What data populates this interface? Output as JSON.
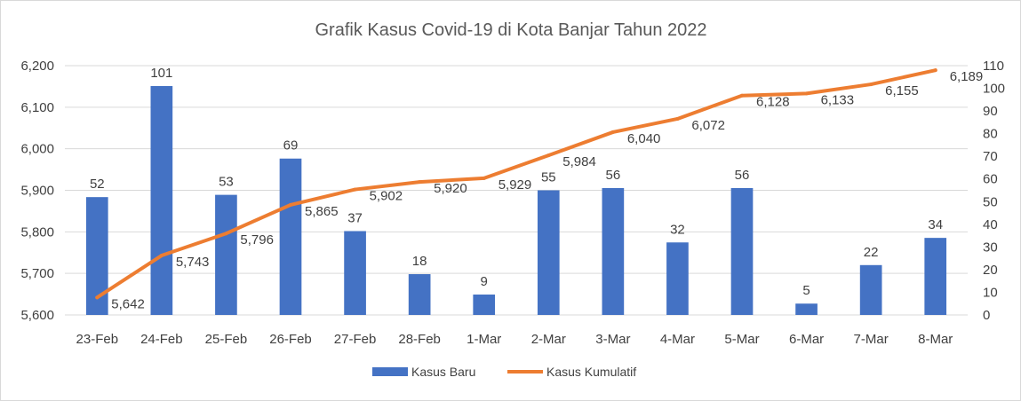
{
  "chart_data": {
    "type": "bar",
    "title": "Grafik Kasus Covid-19 di Kota Banjar Tahun 2022",
    "categories": [
      "23-Feb",
      "24-Feb",
      "25-Feb",
      "26-Feb",
      "27-Feb",
      "28-Feb",
      "1-Mar",
      "2-Mar",
      "3-Mar",
      "4-Mar",
      "5-Mar",
      "6-Mar",
      "7-Mar",
      "8-Mar"
    ],
    "series": [
      {
        "name": "Kasus Baru",
        "type": "bar",
        "axis": "right",
        "color": "#4472c4",
        "values": [
          52,
          101,
          53,
          69,
          37,
          18,
          9,
          55,
          56,
          32,
          56,
          5,
          22,
          34
        ],
        "labels": [
          "52",
          "101",
          "53",
          "69",
          "37",
          "18",
          "9",
          "55",
          "56",
          "32",
          "56",
          "5",
          "22",
          "34"
        ]
      },
      {
        "name": "Kasus Kumulatif",
        "type": "line",
        "axis": "left",
        "color": "#ed7d31",
        "values": [
          5642,
          5743,
          5796,
          5865,
          5902,
          5920,
          5929,
          5984,
          6040,
          6072,
          6128,
          6133,
          6155,
          6189
        ],
        "labels": [
          "5,642",
          "5,743",
          "5,796",
          "5,865",
          "5,902",
          "5,920",
          "5,929",
          "5,984",
          "6,040",
          "6,072",
          "6,128",
          "6,133",
          "6,155",
          "6,189"
        ]
      }
    ],
    "y_left": {
      "lim": [
        5600,
        6200
      ],
      "ticks": [
        "5,600",
        "5,700",
        "5,800",
        "5,900",
        "6,000",
        "6,100",
        "6,200"
      ]
    },
    "y_right": {
      "lim": [
        0,
        110
      ],
      "ticks": [
        "0",
        "10",
        "20",
        "30",
        "40",
        "50",
        "60",
        "70",
        "80",
        "90",
        "100",
        "110"
      ]
    },
    "grid": true,
    "legend_position": "bottom"
  }
}
